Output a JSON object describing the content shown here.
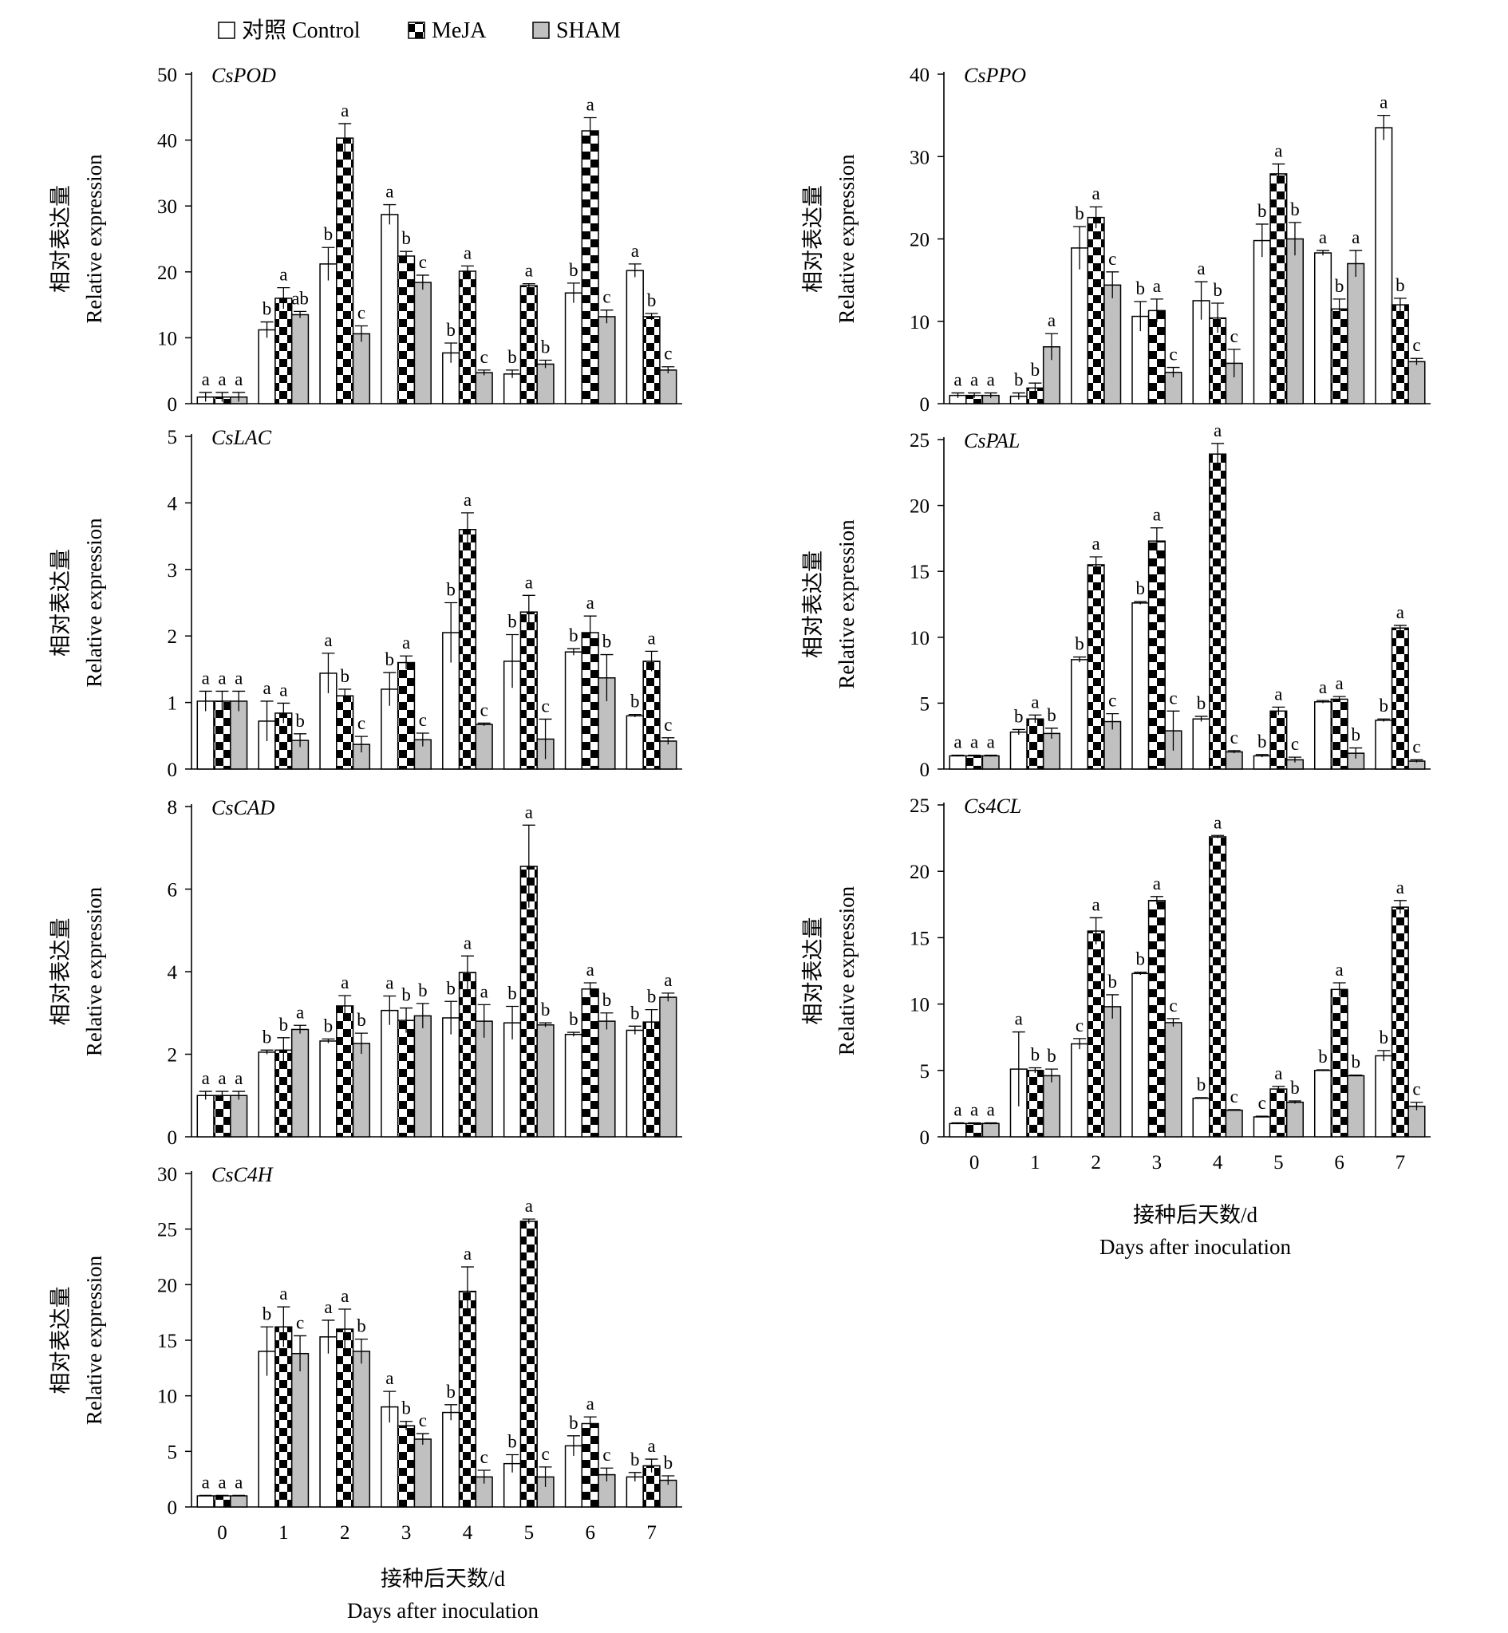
{
  "legend": [
    {
      "label": "对照 Control",
      "pattern": "white"
    },
    {
      "label": "MeJA",
      "pattern": "checker"
    },
    {
      "label": "SHAM",
      "pattern": "gray"
    }
  ],
  "colors": {
    "control": "#ffffff",
    "meja_checker": "#000000",
    "sham": "#c0c0c0",
    "axis": "#000000"
  },
  "ylabel_cn": "相对表达量",
  "ylabel_en": "Relative expression",
  "xlabel_cn": "接种后天数/d",
  "xlabel_en": "Days after inoculation",
  "chart_data": [
    {
      "type": "bar",
      "gene": "CsPOD",
      "ylim": [
        0,
        50
      ],
      "yticks": [
        0,
        10,
        20,
        30,
        40,
        50
      ],
      "categories": [
        "0",
        "1",
        "2",
        "3",
        "4",
        "5",
        "6",
        "7"
      ],
      "series": [
        {
          "name": "对照 Control",
          "values": [
            1,
            11.2,
            21.2,
            28.7,
            7.7,
            4.5,
            16.8,
            20.2
          ],
          "errors": [
            0.7,
            1.2,
            2.5,
            1.5,
            1.5,
            0.6,
            1.5,
            1.0
          ],
          "letters": [
            "a",
            "b",
            "b",
            "a",
            "b",
            "b",
            "b",
            "a"
          ]
        },
        {
          "name": "MeJA",
          "values": [
            1,
            16.0,
            40.3,
            22.4,
            20.1,
            17.9,
            41.4,
            13.2
          ],
          "errors": [
            0.7,
            1.6,
            2.2,
            0.7,
            0.8,
            0.3,
            2.0,
            0.5
          ],
          "letters": [
            "a",
            "a",
            "a",
            "b",
            "a",
            "a",
            "a",
            "b"
          ]
        },
        {
          "name": "SHAM",
          "values": [
            1,
            13.5,
            10.6,
            18.4,
            4.7,
            6.0,
            13.2,
            5.1
          ],
          "errors": [
            0.7,
            0.5,
            1.2,
            1.1,
            0.4,
            0.6,
            1.0,
            0.5
          ],
          "letters": [
            "a",
            "ab",
            "c",
            "c",
            "c",
            "b",
            "c",
            "c"
          ]
        }
      ]
    },
    {
      "type": "bar",
      "gene": "CsPPO",
      "ylim": [
        0,
        40
      ],
      "yticks": [
        0,
        10,
        20,
        30,
        40
      ],
      "categories": [
        "0",
        "1",
        "2",
        "3",
        "4",
        "5",
        "6",
        "7"
      ],
      "series": [
        {
          "name": "对照 Control",
          "values": [
            1,
            0.9,
            18.9,
            10.6,
            12.5,
            19.8,
            18.3,
            33.5
          ],
          "errors": [
            0.3,
            0.4,
            2.6,
            1.8,
            2.3,
            2.0,
            0.3,
            1.5
          ],
          "letters": [
            "a",
            "b",
            "b",
            "b",
            "a",
            "b",
            "a",
            "a"
          ]
        },
        {
          "name": "MeJA",
          "values": [
            1,
            1.9,
            22.6,
            11.3,
            10.4,
            27.9,
            11.5,
            12.0
          ],
          "errors": [
            0.3,
            0.6,
            1.3,
            1.4,
            1.8,
            1.2,
            1.2,
            0.8
          ],
          "letters": [
            "a",
            "b",
            "a",
            "a",
            "b",
            "a",
            "b",
            "b"
          ]
        },
        {
          "name": "SHAM",
          "values": [
            1,
            6.9,
            14.4,
            3.8,
            4.9,
            20.0,
            17.0,
            5.1
          ],
          "errors": [
            0.3,
            1.6,
            1.6,
            0.6,
            1.7,
            2.0,
            1.6,
            0.4
          ],
          "letters": [
            "a",
            "a",
            "c",
            "c",
            "c",
            "b",
            "a",
            "c"
          ]
        }
      ]
    },
    {
      "type": "bar",
      "gene": "CsLAC",
      "ylim": [
        0,
        5
      ],
      "yticks": [
        0,
        1,
        2,
        3,
        4,
        5
      ],
      "categories": [
        "0",
        "1",
        "2",
        "3",
        "4",
        "5",
        "6",
        "7"
      ],
      "series": [
        {
          "name": "对照 Control",
          "values": [
            1.02,
            0.72,
            1.44,
            1.2,
            2.05,
            1.62,
            1.76,
            0.8
          ],
          "errors": [
            0.15,
            0.3,
            0.3,
            0.25,
            0.45,
            0.4,
            0.05,
            0.02
          ],
          "letters": [
            "a",
            "a",
            "a",
            "b",
            "b",
            "b",
            "b",
            "b"
          ]
        },
        {
          "name": "MeJA",
          "values": [
            1.02,
            0.84,
            1.1,
            1.6,
            3.6,
            2.36,
            2.05,
            1.62
          ],
          "errors": [
            0.15,
            0.15,
            0.1,
            0.1,
            0.25,
            0.25,
            0.25,
            0.15
          ],
          "letters": [
            "a",
            "a",
            "b",
            "a",
            "a",
            "a",
            "a",
            "a"
          ]
        },
        {
          "name": "SHAM",
          "values": [
            1.02,
            0.43,
            0.37,
            0.44,
            0.67,
            0.45,
            1.37,
            0.42
          ],
          "errors": [
            0.15,
            0.1,
            0.12,
            0.1,
            0.02,
            0.3,
            0.35,
            0.05
          ],
          "letters": [
            "a",
            "b",
            "c",
            "c",
            "c",
            "c",
            "b",
            "c"
          ]
        }
      ]
    },
    {
      "type": "bar",
      "gene": "CsPAL",
      "ylim": [
        0,
        25
      ],
      "yticks": [
        0,
        5,
        10,
        15,
        20,
        25
      ],
      "categories": [
        "0",
        "1",
        "2",
        "3",
        "4",
        "5",
        "6",
        "7"
      ],
      "series": [
        {
          "name": "对照 Control",
          "values": [
            1,
            2.8,
            8.3,
            12.6,
            3.8,
            1.0,
            5.1,
            3.7
          ],
          "errors": [
            0.05,
            0.2,
            0.2,
            0.1,
            0.2,
            0.1,
            0.1,
            0.1
          ],
          "letters": [
            "a",
            "b",
            "b",
            "b",
            "b",
            "b",
            "a",
            "b"
          ]
        },
        {
          "name": "MeJA",
          "values": [
            1,
            3.8,
            15.5,
            17.3,
            23.9,
            4.4,
            5.3,
            10.7
          ],
          "errors": [
            0.05,
            0.3,
            0.6,
            1.0,
            0.8,
            0.3,
            0.2,
            0.2
          ],
          "letters": [
            "a",
            "a",
            "a",
            "a",
            "a",
            "a",
            "a",
            "a"
          ]
        },
        {
          "name": "SHAM",
          "values": [
            1,
            2.7,
            3.6,
            2.9,
            1.3,
            0.7,
            1.2,
            0.6
          ],
          "errors": [
            0.05,
            0.4,
            0.6,
            1.5,
            0.1,
            0.2,
            0.4,
            0.1
          ],
          "letters": [
            "a",
            "b",
            "c",
            "c",
            "c",
            "c",
            "b",
            "c"
          ]
        }
      ]
    },
    {
      "type": "bar",
      "gene": "CsCAD",
      "ylim": [
        0,
        8
      ],
      "yticks": [
        0,
        2,
        4,
        6,
        8
      ],
      "categories": [
        "0",
        "1",
        "2",
        "3",
        "4",
        "5",
        "6",
        "7"
      ],
      "series": [
        {
          "name": "对照 Control",
          "values": [
            1,
            2.05,
            2.32,
            3.06,
            2.88,
            2.76,
            2.48,
            2.58
          ],
          "errors": [
            0.1,
            0.05,
            0.05,
            0.35,
            0.4,
            0.4,
            0.05,
            0.1
          ],
          "letters": [
            "a",
            "b",
            "b",
            "a",
            "b",
            "b",
            "b",
            "b"
          ]
        },
        {
          "name": "MeJA",
          "values": [
            1,
            2.1,
            3.17,
            2.82,
            3.98,
            6.55,
            3.58,
            2.78
          ],
          "errors": [
            0.1,
            0.3,
            0.25,
            0.3,
            0.4,
            1.0,
            0.15,
            0.3
          ],
          "letters": [
            "a",
            "b",
            "a",
            "b",
            "a",
            "a",
            "a",
            "b"
          ]
        },
        {
          "name": "SHAM",
          "values": [
            1,
            2.6,
            2.26,
            2.93,
            2.8,
            2.71,
            2.8,
            3.38
          ],
          "errors": [
            0.1,
            0.1,
            0.25,
            0.3,
            0.4,
            0.05,
            0.2,
            0.1
          ],
          "letters": [
            "a",
            "a",
            "b",
            "b",
            "a",
            "b",
            "b",
            "a"
          ]
        }
      ]
    },
    {
      "type": "bar",
      "gene": "Cs4CL",
      "ylim": [
        0,
        25
      ],
      "yticks": [
        0,
        5,
        10,
        15,
        20,
        25
      ],
      "categories": [
        "0",
        "1",
        "2",
        "3",
        "4",
        "5",
        "6",
        "7"
      ],
      "series": [
        {
          "name": "对照 Control",
          "values": [
            1,
            5.1,
            7.0,
            12.3,
            2.9,
            1.5,
            5.0,
            6.1
          ],
          "errors": [
            0.05,
            2.8,
            0.4,
            0.1,
            0.05,
            0.05,
            0.05,
            0.4
          ],
          "letters": [
            "a",
            "a",
            "c",
            "b",
            "b",
            "c",
            "b",
            "b"
          ]
        },
        {
          "name": "MeJA",
          "values": [
            1,
            5.0,
            15.5,
            17.8,
            22.6,
            3.6,
            11.1,
            17.3
          ],
          "errors": [
            0.05,
            0.2,
            1.0,
            0.3,
            0.1,
            0.2,
            0.5,
            0.5
          ],
          "letters": [
            "a",
            "b",
            "a",
            "a",
            "a",
            "a",
            "a",
            "a"
          ]
        },
        {
          "name": "SHAM",
          "values": [
            1,
            4.6,
            9.8,
            8.6,
            2.0,
            2.6,
            4.6,
            2.3
          ],
          "errors": [
            0.05,
            0.5,
            0.9,
            0.3,
            0.05,
            0.1,
            0.05,
            0.3
          ],
          "letters": [
            "a",
            "b",
            "b",
            "c",
            "c",
            "b",
            "b",
            "c"
          ]
        }
      ]
    },
    {
      "type": "bar",
      "gene": "CsC4H",
      "ylim": [
        0,
        30
      ],
      "yticks": [
        0,
        5,
        10,
        15,
        20,
        25,
        30
      ],
      "categories": [
        "0",
        "1",
        "2",
        "3",
        "4",
        "5",
        "6",
        "7"
      ],
      "series": [
        {
          "name": "对照 Control",
          "values": [
            1,
            14.0,
            15.3,
            9.0,
            8.5,
            3.9,
            5.5,
            2.7
          ],
          "errors": [
            0.05,
            2.2,
            1.5,
            1.4,
            0.7,
            0.8,
            0.9,
            0.4
          ],
          "letters": [
            "a",
            "b",
            "a",
            "a",
            "b",
            "b",
            "b",
            "b"
          ]
        },
        {
          "name": "MeJA",
          "values": [
            1,
            16.2,
            16.0,
            7.3,
            19.4,
            25.7,
            7.5,
            3.7
          ],
          "errors": [
            0.05,
            1.8,
            1.8,
            0.4,
            2.2,
            0.2,
            0.6,
            0.6
          ],
          "letters": [
            "a",
            "a",
            "a",
            "b",
            "a",
            "a",
            "a",
            "a"
          ]
        },
        {
          "name": "SHAM",
          "values": [
            1,
            13.8,
            14.0,
            6.1,
            2.7,
            2.7,
            2.9,
            2.4
          ],
          "errors": [
            0.05,
            1.6,
            1.1,
            0.5,
            0.6,
            0.9,
            0.6,
            0.4
          ],
          "letters": [
            "a",
            "c",
            "b",
            "c",
            "c",
            "c",
            "c",
            "b"
          ]
        }
      ]
    }
  ]
}
